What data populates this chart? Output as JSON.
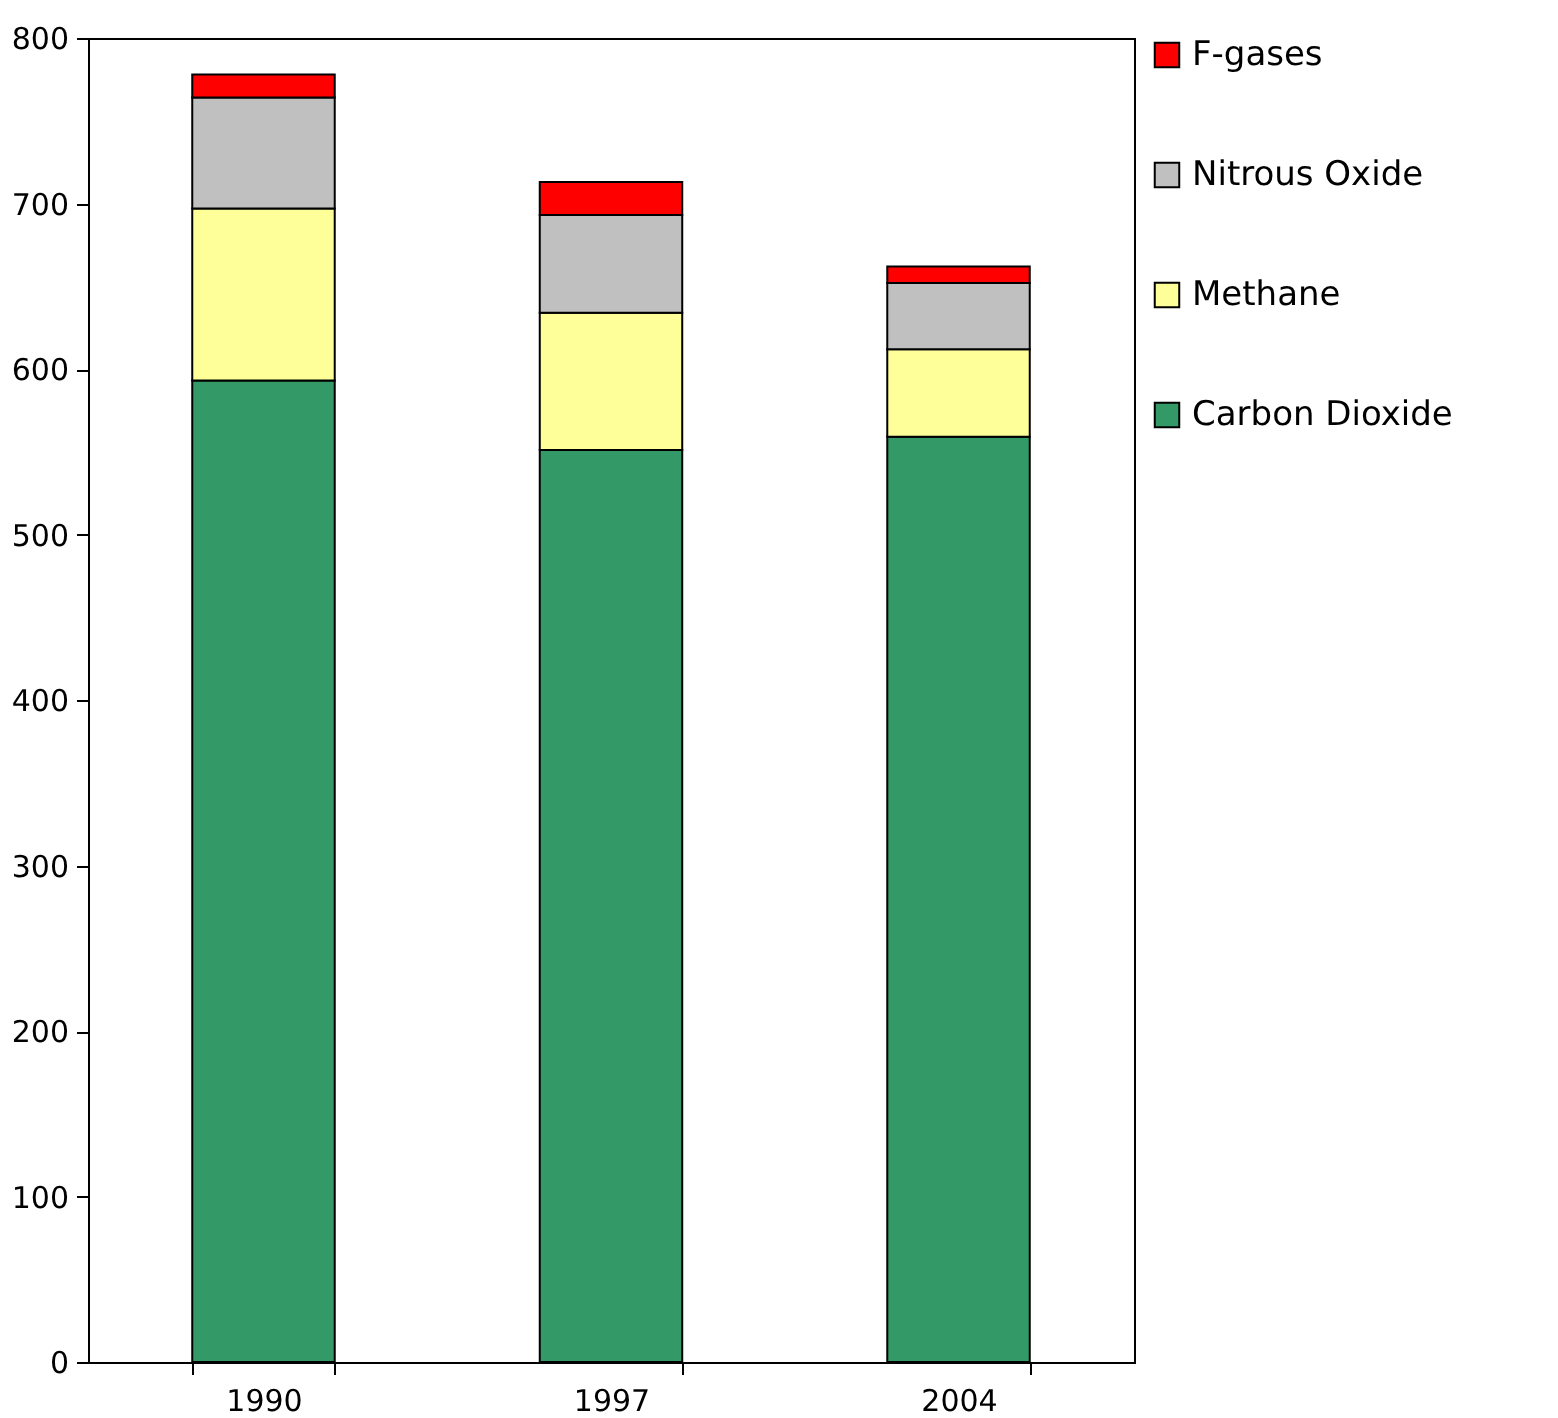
{
  "chart_data": {
    "type": "bar",
    "stacked": true,
    "categories": [
      "1990",
      "1997",
      "2004"
    ],
    "series": [
      {
        "name": "Carbon Dioxide",
        "color": "#339966",
        "values": [
          593,
          551,
          559
        ]
      },
      {
        "name": "Methane",
        "color": "#ffff99",
        "values": [
          104,
          83,
          53
        ]
      },
      {
        "name": "Nitrous Oxide",
        "color": "#c0c0c0",
        "values": [
          67,
          59,
          40
        ]
      },
      {
        "name": "F-gases",
        "color": "#ff0000",
        "values": [
          14,
          20,
          10
        ]
      }
    ],
    "ylim": [
      0,
      800
    ],
    "yticks": [
      0,
      100,
      200,
      300,
      400,
      500,
      600,
      700,
      800
    ],
    "grid": false,
    "legend": "right"
  }
}
